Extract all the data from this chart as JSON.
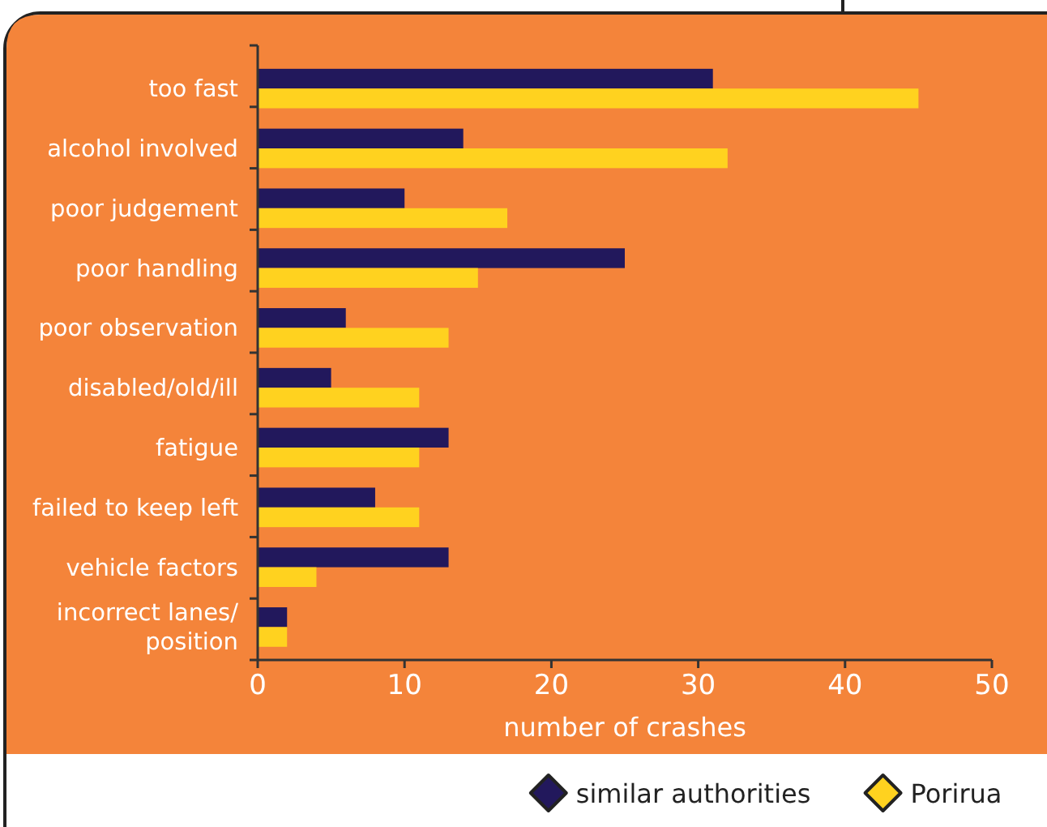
{
  "chart_data": {
    "type": "bar",
    "orientation": "horizontal",
    "xlabel": "number of crashes",
    "categories": [
      "too fast",
      "alcohol involved",
      "poor judgement",
      "poor handling",
      "poor observation",
      "disabled/old/ill",
      "fatigue",
      "failed to keep left",
      "vehicle factors",
      "incorrect lanes/\nposition"
    ],
    "series": [
      {
        "name": "similar authorities",
        "color": "#22185c",
        "values": [
          31,
          14,
          10,
          25,
          6,
          5,
          13,
          8,
          13,
          2
        ]
      },
      {
        "name": "Porirua",
        "color": "#ffd21f",
        "values": [
          45,
          32,
          17,
          15,
          13,
          11,
          11,
          11,
          4,
          2
        ]
      }
    ],
    "xlim": [
      0,
      50
    ],
    "xticks": [
      0,
      10,
      20,
      30,
      40,
      50
    ],
    "grid": false,
    "legend": "bottom right"
  }
}
